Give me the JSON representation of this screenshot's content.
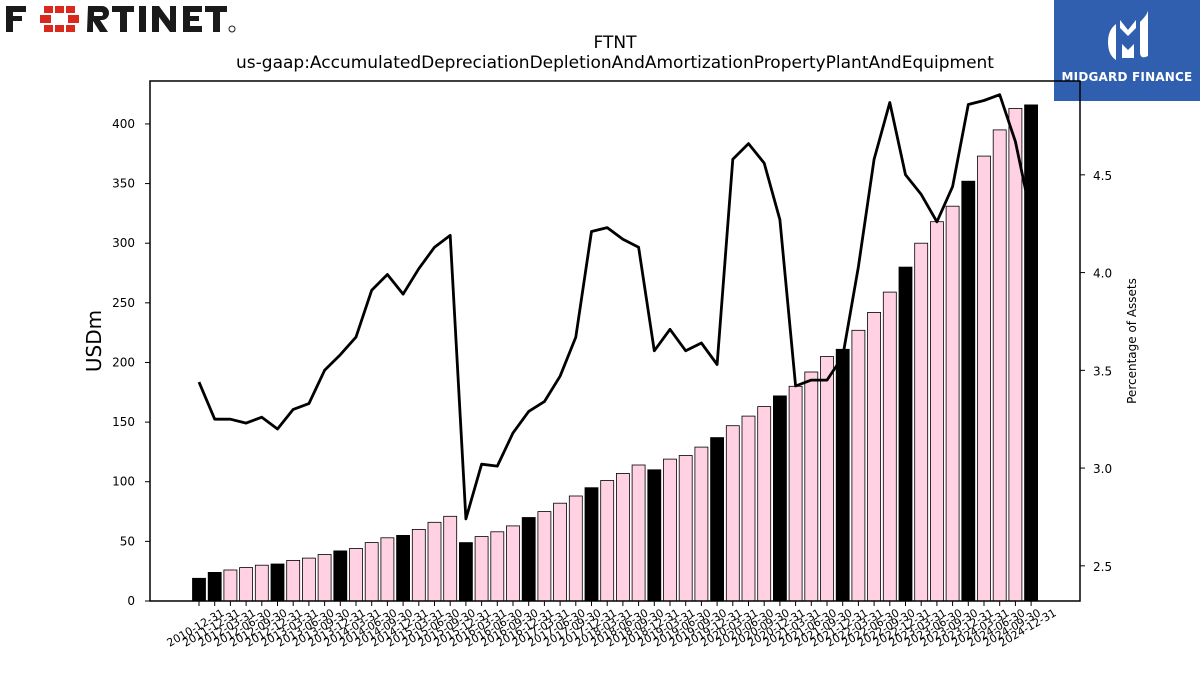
{
  "header": {
    "brand": "FORTINET",
    "partner": "MIDGARD FINANCE"
  },
  "chart_data": {
    "type": "bar",
    "title": "FTNT",
    "subtitle": "us-gaap:AccumulatedDepreciationDepletionAndAmortizationPropertyPlantAndEquipment",
    "ylabel": "USDm",
    "y2label": "Percentage of Assets",
    "ylim": [
      0,
      436
    ],
    "y2lim": [
      2.32,
      4.98
    ],
    "yticks": [
      0,
      50,
      100,
      150,
      200,
      250,
      300,
      350,
      400
    ],
    "y2ticks": [
      2.5,
      3.0,
      3.5,
      4.0,
      4.5
    ],
    "categories": [
      "2010-12-31",
      "2011-12-31",
      "2012-03-31",
      "2012-06-30",
      "2012-09-30",
      "2012-12-31",
      "2013-03-31",
      "2013-06-30",
      "2013-09-30",
      "2013-12-31",
      "2014-03-31",
      "2014-06-30",
      "2014-09-30",
      "2014-12-31",
      "2015-03-31",
      "2015-06-30",
      "2015-09-30",
      "2015-12-31",
      "2016-03-31",
      "2016-06-30",
      "2016-09-30",
      "2016-12-31",
      "2017-03-31",
      "2017-06-30",
      "2017-09-30",
      "2017-12-31",
      "2018-03-31",
      "2018-06-30",
      "2018-09-30",
      "2018-12-31",
      "2019-03-31",
      "2019-06-30",
      "2019-09-30",
      "2019-12-31",
      "2020-03-31",
      "2020-06-30",
      "2020-09-30",
      "2020-12-31",
      "2021-03-31",
      "2021-06-30",
      "2021-09-30",
      "2021-12-31",
      "2022-03-31",
      "2022-06-30",
      "2022-09-30",
      "2022-12-31",
      "2023-03-31",
      "2023-06-30",
      "2023-09-30",
      "2023-12-31",
      "2024-03-31",
      "2024-06-30",
      "2024-09-30",
      "2024-12-31"
    ],
    "xticklabels": [
      "2010-12-31",
      "2011-12-31",
      "2012-03-31",
      "2012-06-30",
      "2012-09-30",
      "2012-12-31",
      "2013-03-31",
      "2013-06-30",
      "2013-09-30",
      "2013-12-31",
      "2014-03-31",
      "2014-06-30",
      "2014-09-30",
      "2014-12-31",
      "2015-03-31",
      "2015-06-30",
      "2015-09-30",
      "2015-12-31",
      "2016-03-31",
      "2016-06-30",
      "2016-09-30",
      "2016-12-31",
      "2017-03-31",
      "2017-06-30",
      "2017-09-30",
      "2017-12-31",
      "2018-03-31",
      "2018-06-30",
      "2018-09-30",
      "2018-12-31",
      "2019-03-31",
      "2019-06-30",
      "2019-09-30",
      "2019-12-31",
      "2020-03-31",
      "2020-06-30",
      "2020-09-30",
      "2020-12-31",
      "2021-03-31",
      "2021-06-30",
      "2021-09-30",
      "2021-12-31",
      "2022-03-31",
      "2022-06-30",
      "2022-09-30",
      "2022-12-31",
      "2023-03-31",
      "2023-06-30",
      "2023-09-30",
      "2023-12-31",
      "2024-03-31",
      "2024-06-30",
      "2024-09-30",
      "2024-12-31"
    ],
    "values": [
      19,
      24,
      26,
      28,
      30,
      31,
      34,
      36,
      39,
      42,
      44,
      49,
      53,
      55,
      60,
      66,
      71,
      49,
      54,
      58,
      63,
      70,
      75,
      82,
      88,
      95,
      101,
      107,
      114,
      110,
      119,
      122,
      129,
      137,
      147,
      155,
      163,
      172,
      180,
      192,
      205,
      211,
      227,
      242,
      259,
      280,
      300,
      318,
      331,
      352,
      373,
      395,
      413,
      416
    ],
    "annual": [
      true,
      true,
      false,
      false,
      false,
      true,
      false,
      false,
      false,
      true,
      false,
      false,
      false,
      true,
      false,
      false,
      false,
      true,
      false,
      false,
      false,
      true,
      false,
      false,
      false,
      true,
      false,
      false,
      false,
      true,
      false,
      false,
      false,
      true,
      false,
      false,
      false,
      true,
      false,
      false,
      false,
      true,
      false,
      false,
      false,
      true,
      false,
      false,
      false,
      true,
      false,
      false,
      false,
      true
    ],
    "pct_of_assets": [
      3.44,
      3.25,
      3.25,
      3.23,
      3.26,
      3.2,
      3.3,
      3.33,
      3.5,
      3.58,
      3.67,
      3.91,
      3.99,
      3.89,
      4.02,
      4.13,
      4.19,
      2.74,
      3.02,
      3.01,
      3.18,
      3.29,
      3.34,
      3.47,
      3.67,
      4.21,
      4.23,
      4.17,
      4.13,
      3.6,
      3.71,
      3.6,
      3.64,
      3.53,
      4.58,
      4.66,
      4.56,
      4.27,
      3.42,
      3.45,
      3.45,
      3.57,
      4.03,
      4.58,
      4.87,
      4.5,
      4.4,
      4.26,
      4.44,
      4.86,
      4.88,
      4.91,
      4.67,
      4.29
    ],
    "colors": {
      "annual_bar": "#000000",
      "quarter_bar": "#ffd1e3",
      "bar_edge": "#000000",
      "line": "#000000",
      "partner_bg": "#2f5fae",
      "brand_red": "#da291c"
    },
    "grid": false,
    "legend": "none"
  }
}
